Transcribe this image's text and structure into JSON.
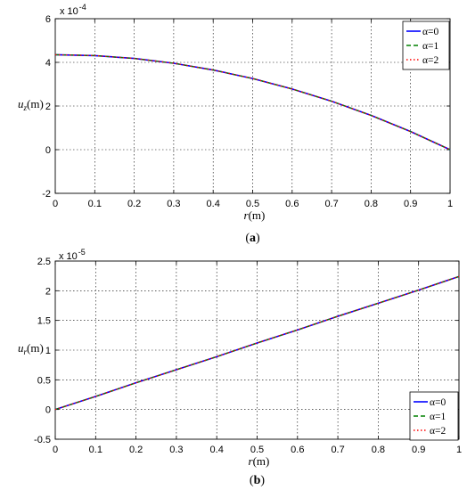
{
  "chart_data": [
    {
      "type": "line",
      "caption": "(a)",
      "xlabel": "r",
      "xunit": "(m)",
      "ylabel": "u",
      "ylabel_sub": "z",
      "yunit": "(m)",
      "scale_base": "x 10",
      "scale_exp": "-4",
      "xlim": [
        0,
        1
      ],
      "ylim": [
        -2,
        6
      ],
      "xticks": [
        "0",
        "0.1",
        "0.2",
        "0.3",
        "0.4",
        "0.5",
        "0.6",
        "0.7",
        "0.8",
        "0.9",
        "1"
      ],
      "yticks": [
        "-2",
        "0",
        "2",
        "4",
        "6"
      ],
      "grid": true,
      "legend_position": "top-right",
      "x": [
        0,
        0.1,
        0.2,
        0.3,
        0.4,
        0.5,
        0.6,
        0.7,
        0.8,
        0.9,
        1.0
      ],
      "series": [
        {
          "name": "α=0",
          "color": "#0000ff",
          "dash": "solid",
          "values": [
            4.35,
            4.31,
            4.18,
            3.96,
            3.65,
            3.26,
            2.78,
            2.22,
            1.57,
            0.83,
            0.0
          ]
        },
        {
          "name": "α=1",
          "color": "#008000",
          "dash": "dashed",
          "values": [
            4.35,
            4.31,
            4.18,
            3.96,
            3.65,
            3.26,
            2.78,
            2.22,
            1.57,
            0.83,
            0.0
          ]
        },
        {
          "name": "α=2",
          "color": "#ff0000",
          "dash": "dotted",
          "values": [
            4.35,
            4.31,
            4.18,
            3.96,
            3.65,
            3.26,
            2.78,
            2.22,
            1.57,
            0.83,
            0.0
          ]
        }
      ]
    },
    {
      "type": "line",
      "caption": "(b)",
      "xlabel": "r",
      "xunit": "(m)",
      "ylabel": "u",
      "ylabel_sub": "r",
      "yunit": "(m)",
      "scale_base": "x 10",
      "scale_exp": "-5",
      "xlim": [
        0,
        1
      ],
      "ylim": [
        -0.5,
        2.5
      ],
      "xticks": [
        "0",
        "0.1",
        "0.2",
        "0.3",
        "0.4",
        "0.5",
        "0.6",
        "0.7",
        "0.8",
        "0.9",
        "1"
      ],
      "yticks": [
        "-0.5",
        "0",
        "0.5",
        "1",
        "1.5",
        "2",
        "2.5"
      ],
      "grid": true,
      "legend_position": "bottom-right",
      "x": [
        0,
        0.1,
        0.2,
        0.3,
        0.4,
        0.5,
        0.6,
        0.7,
        0.8,
        0.9,
        1.0
      ],
      "series": [
        {
          "name": "α=0",
          "color": "#0000ff",
          "dash": "solid",
          "values": [
            0.0,
            0.22,
            0.45,
            0.67,
            0.89,
            1.12,
            1.34,
            1.57,
            1.79,
            2.01,
            2.24
          ]
        },
        {
          "name": "α=1",
          "color": "#008000",
          "dash": "dashed",
          "values": [
            0.0,
            0.22,
            0.45,
            0.67,
            0.89,
            1.12,
            1.34,
            1.57,
            1.79,
            2.01,
            2.24
          ]
        },
        {
          "name": "α=2",
          "color": "#ff0000",
          "dash": "dotted",
          "values": [
            0.0,
            0.22,
            0.45,
            0.67,
            0.89,
            1.12,
            1.34,
            1.57,
            1.79,
            2.01,
            2.24
          ]
        }
      ]
    }
  ]
}
